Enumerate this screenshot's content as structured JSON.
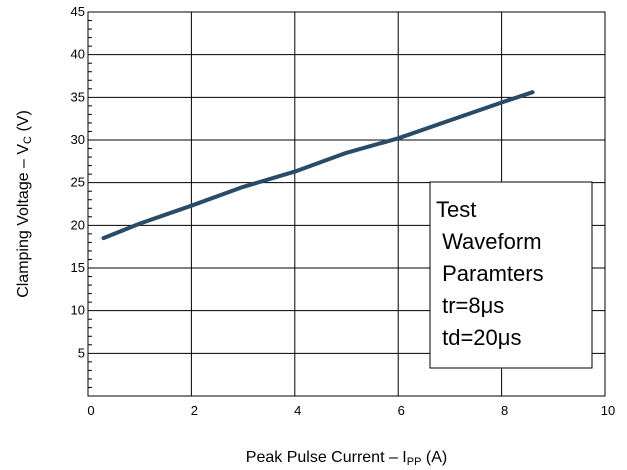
{
  "chart_data": {
    "type": "line",
    "xlabel": {
      "prefix": "Peak Pulse Current – I",
      "sub": "PP",
      "suffix": " (A)"
    },
    "ylabel": {
      "prefix": "Clamping Voltage – V",
      "sub": "C",
      "suffix": " (V)"
    },
    "xlim": [
      0,
      10
    ],
    "ylim": [
      0,
      45
    ],
    "x_ticks": [
      "0",
      "2",
      "4",
      "6",
      "8",
      "10"
    ],
    "y_ticks": [
      "5",
      "10",
      "15",
      "20",
      "25",
      "30",
      "35",
      "40",
      "45"
    ],
    "grid": true,
    "series": [
      {
        "color": "#2b4a66",
        "x": [
          0.3,
          1.0,
          2.0,
          3.0,
          4.0,
          5.0,
          6.0,
          7.0,
          8.0,
          8.6
        ],
        "y": [
          18.5,
          20.2,
          22.3,
          24.5,
          26.3,
          28.5,
          30.2,
          32.3,
          34.4,
          35.6
        ]
      }
    ],
    "annotation": {
      "lines": [
        "Test",
        " Waveform",
        " Paramters",
        " tr=8μs",
        " td=20μs"
      ]
    }
  }
}
